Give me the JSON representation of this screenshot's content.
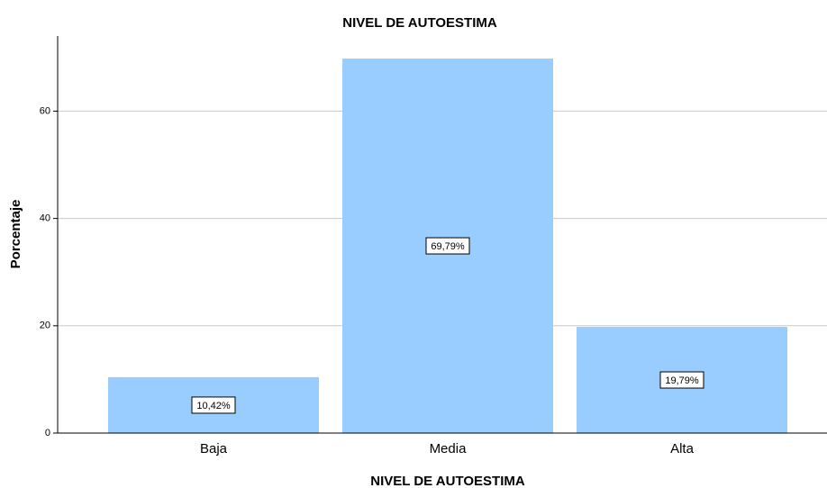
{
  "chart_data": {
    "type": "bar",
    "title": "NIVEL DE AUTOESTIMA",
    "x_label": "NIVEL DE AUTOESTIMA",
    "y_label": "Porcentaje",
    "categories": [
      "Baja",
      "Media",
      "Alta"
    ],
    "values": [
      10.42,
      69.79,
      19.79
    ],
    "value_labels": [
      "10,42%",
      "69,79%",
      "19,79%"
    ],
    "color": "#99ccff",
    "ylim": [
      0,
      74
    ],
    "yticks": [
      0,
      20,
      40,
      60
    ],
    "grid": true
  }
}
